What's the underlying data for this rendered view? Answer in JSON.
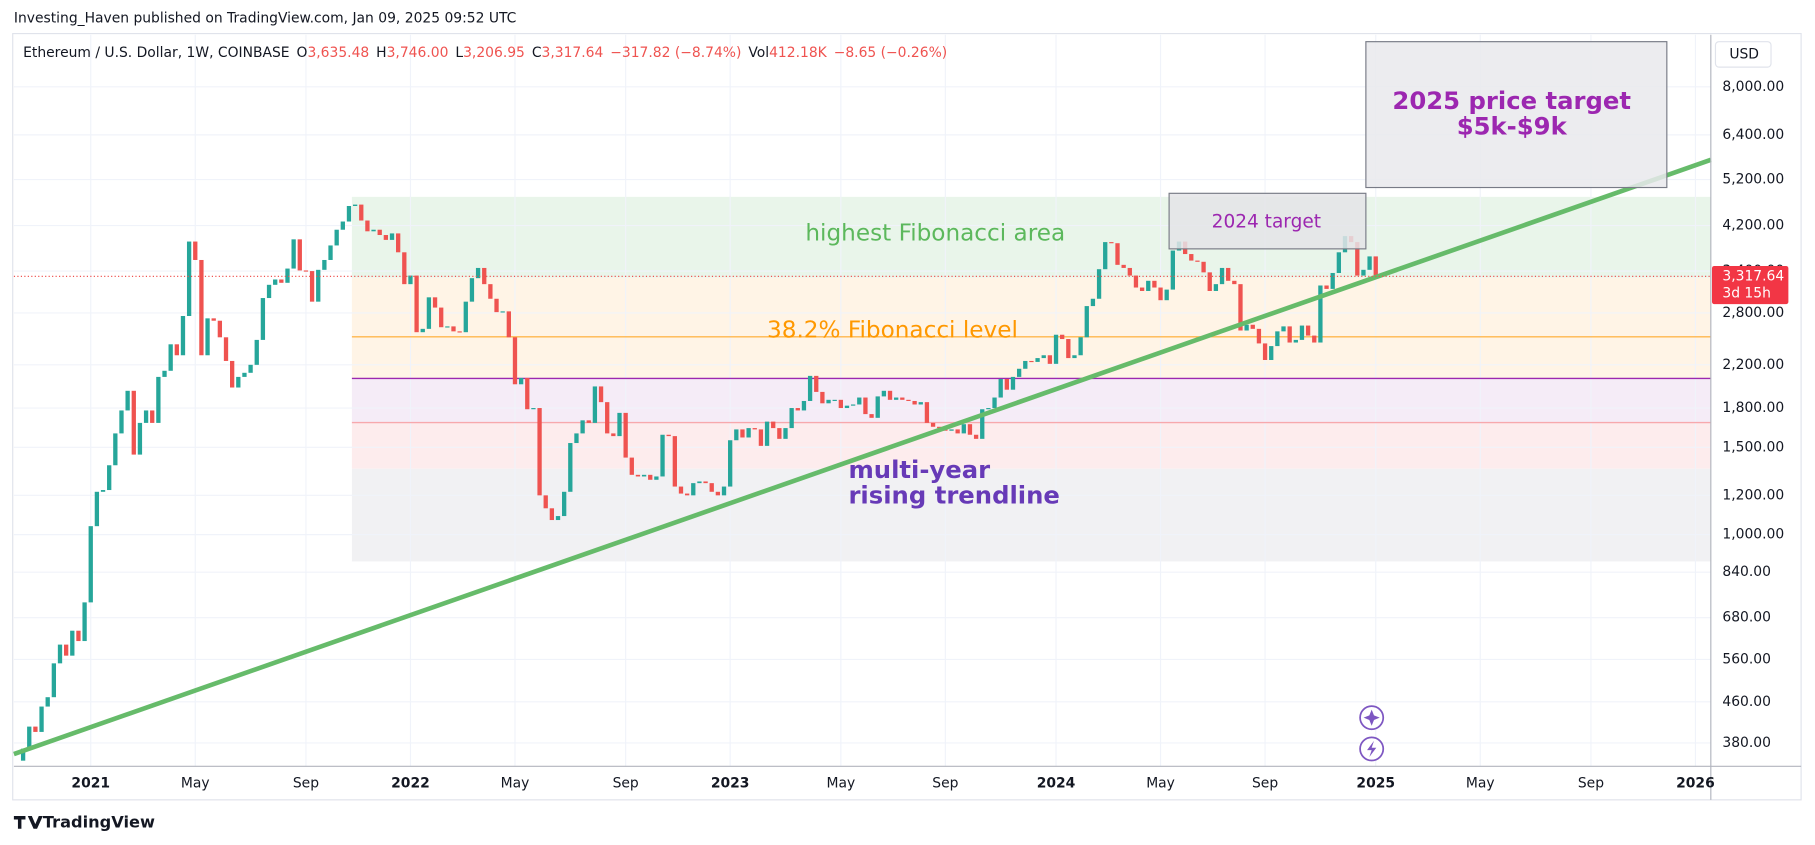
{
  "header": {
    "published": "Investing_Haven published on TradingView.com, Jan 09, 2025 09:52 UTC",
    "symbol": "Ethereum / U.S. Dollar, 1W, COINBASE",
    "legend": [
      "O",
      "3,635.48",
      "H",
      "3,746.00",
      "L",
      "3,206.95",
      "C",
      "3,317.64",
      "−317.82 (−8.74%)",
      "Vol",
      "412.18K",
      "−8.65 (−0.26%)"
    ]
  },
  "footer": "TradingView",
  "chart_data": {
    "type": "candlestick",
    "currency": "USD",
    "log_scale": true,
    "grid": true,
    "up_color": "#26a69a",
    "down_color": "#ef5350",
    "price_label": "3,317.64",
    "countdown": "3d 15h",
    "categories": [
      null,
      null,
      null,
      null,
      null,
      null,
      null,
      null,
      null,
      null,
      null,
      null,
      "2021",
      null,
      null,
      null,
      null,
      null,
      null,
      null,
      null,
      null,
      null,
      null,
      null,
      null,
      null,
      null,
      null,
      "May",
      null,
      null,
      null,
      null,
      null,
      null,
      null,
      null,
      null,
      null,
      null,
      null,
      null,
      null,
      null,
      null,
      null,
      "Sep",
      null,
      null,
      null,
      null,
      null,
      null,
      null,
      null,
      null,
      null,
      null,
      null,
      null,
      null,
      null,
      null,
      "2022",
      null,
      null,
      null,
      null,
      null,
      null,
      null,
      null,
      null,
      null,
      null,
      null,
      null,
      null,
      null,
      null,
      "May",
      null,
      null,
      null,
      null,
      null,
      null,
      null,
      null,
      null,
      null,
      null,
      null,
      null,
      null,
      null,
      null,
      null,
      "Sep",
      null,
      null,
      null,
      null,
      null,
      null,
      null,
      null,
      null,
      null,
      null,
      null,
      null,
      null,
      null,
      null,
      "2023",
      null,
      null,
      null,
      null,
      null,
      null,
      null,
      null,
      null,
      null,
      null,
      null,
      null,
      null,
      null,
      null,
      null,
      "May",
      null,
      null,
      null,
      null,
      null,
      null,
      null,
      null,
      null,
      null,
      null,
      null,
      null,
      null,
      null,
      null,
      "Sep",
      null,
      null,
      null,
      null,
      null,
      null,
      null,
      null,
      null,
      null,
      null,
      null,
      null,
      null,
      null,
      null,
      null,
      "2024",
      null,
      null,
      null,
      null,
      null,
      null,
      null,
      null,
      null,
      null,
      null,
      null,
      null,
      null,
      null,
      null,
      "May",
      null,
      null,
      null,
      null,
      null,
      null,
      null,
      null,
      null,
      null,
      null,
      null,
      null,
      null,
      null,
      null,
      "Sep",
      null,
      null,
      null,
      null,
      null,
      null,
      null,
      null,
      null,
      null,
      null,
      null,
      null,
      null,
      null,
      null,
      null,
      "2025",
      null,
      null,
      null,
      null,
      null,
      null,
      null,
      null,
      null,
      null,
      null,
      null,
      null,
      null,
      null,
      null,
      "May",
      null,
      null,
      null,
      null,
      null,
      null,
      null,
      null,
      null,
      null,
      null,
      null,
      null,
      null,
      null,
      null,
      null,
      "Sep",
      null,
      null,
      null,
      null,
      null,
      null,
      null,
      null,
      null,
      null,
      null,
      null,
      null,
      null,
      null,
      null,
      "2026",
      null,
      null
    ],
    "values": [
      350,
      370,
      410,
      400,
      450,
      470,
      550,
      600,
      570,
      640,
      610,
      730,
      1040,
      1220,
      1230,
      1380,
      1600,
      1780,
      1950,
      1450,
      1680,
      1780,
      1680,
      2080,
      2140,
      2420,
      2300,
      2760,
      3900,
      3580,
      2300,
      2730,
      2700,
      2500,
      2240,
      1980,
      2080,
      2120,
      2200,
      2470,
      3000,
      3190,
      3270,
      3220,
      3440,
      3940,
      3410,
      3400,
      2950,
      3420,
      3580,
      3830,
      4120,
      4280,
      4600,
      4630,
      4300,
      4090,
      4120,
      4020,
      3930,
      4050,
      3710,
      3200,
      3330,
      2560,
      2600,
      3010,
      2870,
      2620,
      2630,
      2570,
      2560,
      2950,
      3290,
      3450,
      3200,
      2990,
      2810,
      2820,
      2500,
      2010,
      2070,
      1790,
      1800,
      1200,
      1130,
      1070,
      1090,
      1220,
      1530,
      1600,
      1700,
      1680,
      1990,
      1850,
      1600,
      1580,
      1760,
      1430,
      1320,
      1310,
      1320,
      1290,
      1310,
      1590,
      1580,
      1250,
      1210,
      1200,
      1270,
      1280,
      1270,
      1220,
      1200,
      1250,
      1550,
      1630,
      1570,
      1640,
      1630,
      1510,
      1690,
      1640,
      1560,
      1640,
      1800,
      1780,
      1860,
      2090,
      1940,
      1840,
      1870,
      1870,
      1800,
      1820,
      1830,
      1890,
      1750,
      1720,
      1900,
      1950,
      1870,
      1890,
      1870,
      1860,
      1830,
      1850,
      1680,
      1650,
      1640,
      1620,
      1630,
      1600,
      1670,
      1590,
      1560,
      1790,
      1800,
      1890,
      2060,
      1960,
      2080,
      2160,
      2240,
      2230,
      2270,
      2300,
      2210,
      2530,
      2480,
      2270,
      2300,
      2500,
      2890,
      2990,
      3430,
      3890,
      3870,
      3500,
      3450,
      3330,
      3150,
      3100,
      3250,
      3150,
      2970,
      3120,
      3740,
      3900,
      3680,
      3570,
      3550,
      3380,
      3100,
      3200,
      3450,
      3250,
      3200,
      2580,
      2650,
      2600,
      2430,
      2250,
      2400,
      2570,
      2630,
      2440,
      2470,
      2640,
      2520,
      2440,
      3180,
      3130,
      3370,
      3710,
      4000,
      3890,
      3330,
      3420,
      3640,
      3317.64,
      null,
      null,
      null,
      null,
      null,
      null,
      null,
      null,
      null,
      null,
      null,
      null,
      null,
      null,
      null,
      null,
      null,
      null,
      null,
      null,
      null,
      null,
      null,
      null,
      null,
      null,
      null,
      null,
      null,
      null,
      null,
      null,
      null,
      null,
      null,
      null,
      null,
      null,
      null,
      null,
      null,
      null,
      null,
      null,
      null,
      null,
      null,
      null,
      null,
      null,
      null,
      null,
      null,
      null
    ],
    "ylim": [
      341,
      10190
    ],
    "yticks": [
      {
        "value": 380,
        "label": "380.00"
      },
      {
        "value": 460,
        "label": "460.00"
      },
      {
        "value": 560,
        "label": "560.00"
      },
      {
        "value": 680,
        "label": "680.00"
      },
      {
        "value": 840,
        "label": "840.00"
      },
      {
        "value": 1000,
        "label": "1,000.00"
      },
      {
        "value": 1200,
        "label": "1,200.00"
      },
      {
        "value": 1500,
        "label": "1,500.00"
      },
      {
        "value": 1800,
        "label": "1,800.00"
      },
      {
        "value": 2200,
        "label": "2,200.00"
      },
      {
        "value": 2800,
        "label": "2,800.00"
      },
      {
        "value": 3400,
        "label": "3,400.00"
      },
      {
        "value": 4200,
        "label": "4,200.00"
      },
      {
        "value": 5200,
        "label": "5,200.00"
      },
      {
        "value": 6400,
        "label": "6,400.00"
      },
      {
        "value": 8000,
        "label": "8,000.00"
      }
    ],
    "fib_zones": [
      {
        "from": 4800,
        "to": 3297,
        "fill": "#e9f5ea"
      },
      {
        "from": 3297,
        "to": 2065,
        "fill": "#fff4e6"
      },
      {
        "from": 2065,
        "to": 1683,
        "fill": "#f5ecf7"
      },
      {
        "from": 1683,
        "to": 1358,
        "fill": "#fdeced"
      },
      {
        "from": 1358,
        "to": 883,
        "fill": "#f1f1f3"
      }
    ],
    "fib_lines": [
      {
        "value": 2506,
        "color": "#ffb74d"
      },
      {
        "value": 2065,
        "color": "#9c27b0"
      },
      {
        "value": 1683,
        "color": "#f7a8ad"
      }
    ],
    "trendline": {
      "values": [
        361,
        5700
      ],
      "color": "#66bb6a"
    },
    "annotations": {
      "fib_area": "highest Fibonacci area",
      "fib_level": "38.2% Fibonacci level",
      "trendline": [
        "multi-year",
        "rising trendline"
      ],
      "target_2024": "2024 target",
      "target_2025": [
        "2025 price target",
        "$5k-$9k"
      ]
    }
  }
}
